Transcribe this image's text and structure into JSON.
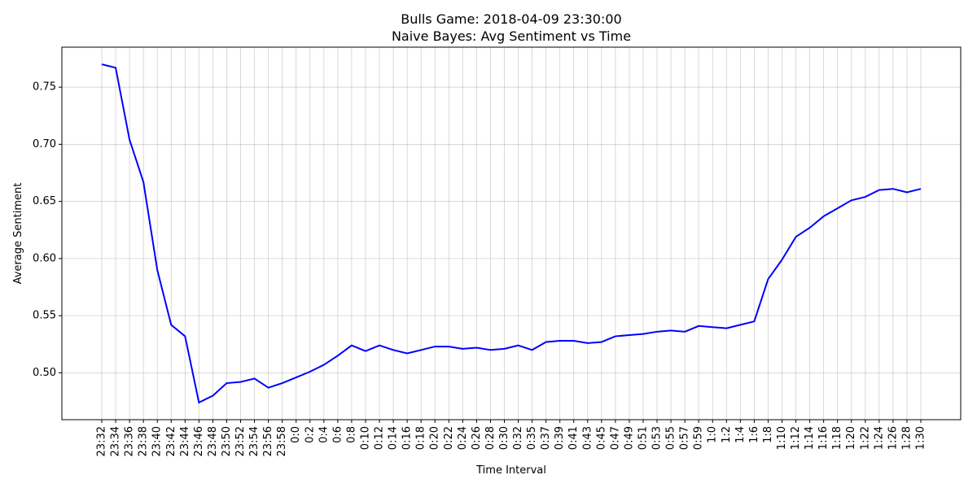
{
  "chart_data": {
    "type": "line",
    "title": "Bulls Game: 2018-04-09 23:30:00",
    "subtitle": "Naive Bayes: Avg Sentiment vs Time",
    "xlabel": "Time Interval",
    "ylabel": "Average Sentiment",
    "ylim": [
      0.459,
      0.785
    ],
    "yticks": [
      "0.50",
      "0.55",
      "0.60",
      "0.65",
      "0.70",
      "0.75"
    ],
    "grid": true,
    "line_color": "#0000ff",
    "categories": [
      "23:32",
      "23:34",
      "23:36",
      "23:38",
      "23:40",
      "23:42",
      "23:44",
      "23:46",
      "23:48",
      "23:50",
      "23:52",
      "23:54",
      "23:56",
      "23:58",
      "0:0",
      "0:2",
      "0:4",
      "0:6",
      "0:8",
      "0:10",
      "0:12",
      "0:14",
      "0:16",
      "0:18",
      "0:20",
      "0:22",
      "0:24",
      "0:26",
      "0:28",
      "0:30",
      "0:32",
      "0:35",
      "0:37",
      "0:39",
      "0:41",
      "0:43",
      "0:45",
      "0:47",
      "0:49",
      "0:51",
      "0:53",
      "0:55",
      "0:57",
      "0:59",
      "1:0",
      "1:2",
      "1:4",
      "1:6",
      "1:8",
      "1:10",
      "1:12",
      "1:14",
      "1:16",
      "1:18",
      "1:20",
      "1:22",
      "1:24",
      "1:26",
      "1:28",
      "1:30"
    ],
    "series": [
      {
        "values": [
          0.77,
          0.767,
          0.704,
          0.667,
          0.59,
          0.542,
          0.532,
          0.474,
          0.48,
          0.491,
          0.492,
          0.495,
          0.487,
          0.491,
          0.496,
          0.501,
          0.507,
          0.515,
          0.524,
          0.519,
          0.524,
          0.52,
          0.517,
          0.52,
          0.523,
          0.523,
          0.521,
          0.522,
          0.52,
          0.521,
          0.524,
          0.52,
          0.527,
          0.528,
          0.528,
          0.526,
          0.527,
          0.532,
          0.533,
          0.534,
          0.536,
          0.537,
          0.536,
          0.541,
          0.54,
          0.539,
          0.542,
          0.545,
          0.582,
          0.599,
          0.619,
          0.627,
          0.637,
          0.644,
          0.651,
          0.654,
          0.66,
          0.661,
          0.658,
          0.661
        ]
      }
    ]
  }
}
